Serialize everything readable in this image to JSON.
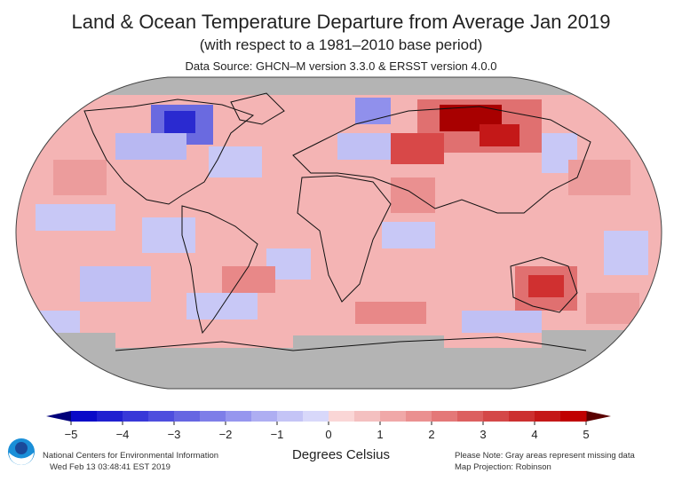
{
  "title": "Land & Ocean Temperature Departure from Average Jan 2019",
  "subtitle": "(with respect to a 1981–2010 base period)",
  "source": "Data Source: GHCN–M version 3.3.0 & ERSST version 4.0.0",
  "legend": {
    "units": "Degrees Celsius",
    "ticks": [
      "−5",
      "−4",
      "−3",
      "−2",
      "−1",
      "0",
      "1",
      "2",
      "3",
      "4",
      "5"
    ],
    "bin_colors": [
      "#0a0ac8",
      "#2020d0",
      "#3838d8",
      "#4e4ede",
      "#6666e2",
      "#7e7ee8",
      "#9696ee",
      "#aeaef2",
      "#c4c4f6",
      "#d8d8fa",
      "#fad6d6",
      "#f4c0c0",
      "#f0a8a8",
      "#ea9090",
      "#e47878",
      "#dc6060",
      "#d44848",
      "#cc3030",
      "#c41818",
      "#c00000"
    ],
    "low_arrow_color": "#00007a",
    "high_arrow_color": "#5a0000",
    "missing_color": "#b4b4b4"
  },
  "footer": {
    "org": "National Centers for Environmental Information",
    "timestamp": "Wed Feb 13 03:48:41 EST 2019",
    "note": "Please Note: Gray areas represent missing data",
    "projection": "Map Projection: Robinson"
  },
  "logo_text": "NOAA"
}
